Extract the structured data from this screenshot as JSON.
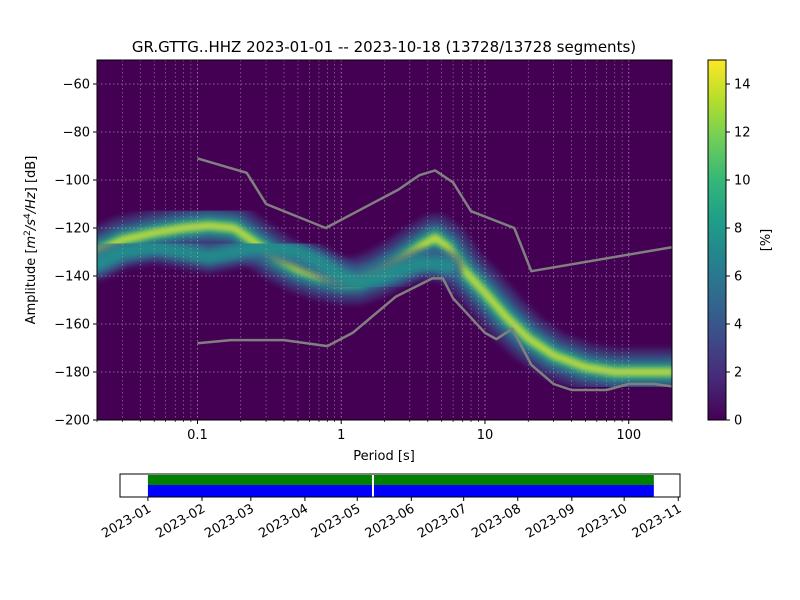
{
  "chart_data": [
    {
      "type": "heatmap",
      "title": "GR.GTTG..HHZ   2023-01-01 -- 2023-10-18  (13728/13728 segments)",
      "xlabel": "Period [s]",
      "ylabel_main": "Amplitude [",
      "ylabel_unit_m": "m",
      "ylabel_exp2": "2",
      "ylabel_slash1": "/s",
      "ylabel_exp4": "4",
      "ylabel_slash2": "/Hz",
      "ylabel_tail": "] [dB]",
      "x_scale": "log",
      "xlim": [
        0.02,
        200
      ],
      "ylim": [
        -200,
        -50
      ],
      "x_ticks": [
        {
          "value": 0.1,
          "label": "0.1"
        },
        {
          "value": 1,
          "label": "1"
        },
        {
          "value": 10,
          "label": "10"
        },
        {
          "value": 100,
          "label": "100"
        }
      ],
      "y_ticks": [
        {
          "value": -60,
          "label": "−60"
        },
        {
          "value": -80,
          "label": "−80"
        },
        {
          "value": -100,
          "label": "−100"
        },
        {
          "value": -120,
          "label": "−120"
        },
        {
          "value": -140,
          "label": "−140"
        },
        {
          "value": -160,
          "label": "−160"
        },
        {
          "value": -180,
          "label": "−180"
        },
        {
          "value": -200,
          "label": "−200"
        }
      ],
      "grid": true,
      "colormap": "viridis",
      "colorbar": {
        "label": "[%]",
        "range": [
          0,
          15
        ],
        "ticks": [
          {
            "value": 0,
            "label": "0"
          },
          {
            "value": 2,
            "label": "2"
          },
          {
            "value": 4,
            "label": "4"
          },
          {
            "value": 6,
            "label": "6"
          },
          {
            "value": 8,
            "label": "8"
          },
          {
            "value": 10,
            "label": "10"
          },
          {
            "value": 12,
            "label": "12"
          },
          {
            "value": 14,
            "label": "14"
          }
        ]
      },
      "density_ridges": [
        {
          "x": [
            0.02,
            0.03,
            0.05,
            0.08,
            0.12,
            0.18,
            0.25,
            0.35,
            0.5,
            0.7,
            1.0,
            1.3,
            1.8,
            2.5,
            3.5,
            4.5,
            5.5,
            7,
            10,
            14,
            20,
            30,
            50,
            80,
            120,
            200
          ],
          "y": [
            -130,
            -125,
            -122,
            -120,
            -119,
            -120,
            -126,
            -132,
            -137,
            -140,
            -142,
            -142,
            -139,
            -134,
            -128,
            -124,
            -128,
            -137,
            -147,
            -157,
            -166,
            -173,
            -178,
            -180,
            -180,
            -180
          ]
        },
        {
          "x": [
            0.02,
            0.03,
            0.05,
            0.08,
            0.12,
            0.18,
            0.25,
            0.35,
            0.5,
            0.7,
            1.0,
            1.3,
            1.8,
            2.5,
            3.5,
            4.5,
            5.5
          ],
          "y": [
            -135,
            -130,
            -128,
            -130,
            -132,
            -130,
            -128,
            -128,
            -130,
            -134,
            -140,
            -143,
            -141,
            -138,
            -135,
            -135,
            -136
          ]
        }
      ],
      "series": [
        {
          "x": [
            0.1,
            0.22,
            0.3,
            0.78,
            2.5,
            3.5,
            4.5,
            6,
            8,
            16,
            21,
            200
          ],
          "y": [
            -91,
            -97,
            -110,
            -120,
            -104,
            -98,
            -96,
            -101,
            -113,
            -120,
            -138,
            -128
          ]
        },
        {
          "x": [
            0.1,
            0.17,
            0.4,
            0.8,
            1.2,
            2.4,
            4.3,
            5.1,
            6,
            10,
            12,
            15.5,
            21,
            30,
            40,
            70,
            100,
            150,
            200
          ],
          "y": [
            -168,
            -166.7,
            -166.7,
            -169.2,
            -163.7,
            -148.6,
            -141,
            -141,
            -149.3,
            -163.7,
            -166.3,
            -162,
            -177,
            -185,
            -187.5,
            -187.5,
            -185,
            -185,
            -186
          ]
        }
      ]
    },
    {
      "type": "bar",
      "x_ticks": [
        {
          "value": "2023-01-01",
          "label": "2023-01"
        },
        {
          "value": "2023-02-01",
          "label": "2023-02"
        },
        {
          "value": "2023-03-01",
          "label": "2023-03"
        },
        {
          "value": "2023-04-01",
          "label": "2023-04"
        },
        {
          "value": "2023-05-01",
          "label": "2023-05"
        },
        {
          "value": "2023-06-01",
          "label": "2023-06"
        },
        {
          "value": "2023-07-01",
          "label": "2023-07"
        },
        {
          "value": "2023-08-01",
          "label": "2023-08"
        },
        {
          "value": "2023-09-01",
          "label": "2023-09"
        },
        {
          "value": "2023-10-01",
          "label": "2023-10"
        },
        {
          "value": "2023-11-01",
          "label": "2023-11"
        }
      ],
      "xlim": [
        "2022-12-16",
        "2023-11-02"
      ],
      "coverage": {
        "start": "2023-01-01",
        "end": "2023-10-18",
        "gaps": [
          "2023-05-10"
        ],
        "colors": {
          "top": "#008000",
          "bottom": "#0000ff",
          "gap": "#ffffff"
        }
      }
    }
  ]
}
